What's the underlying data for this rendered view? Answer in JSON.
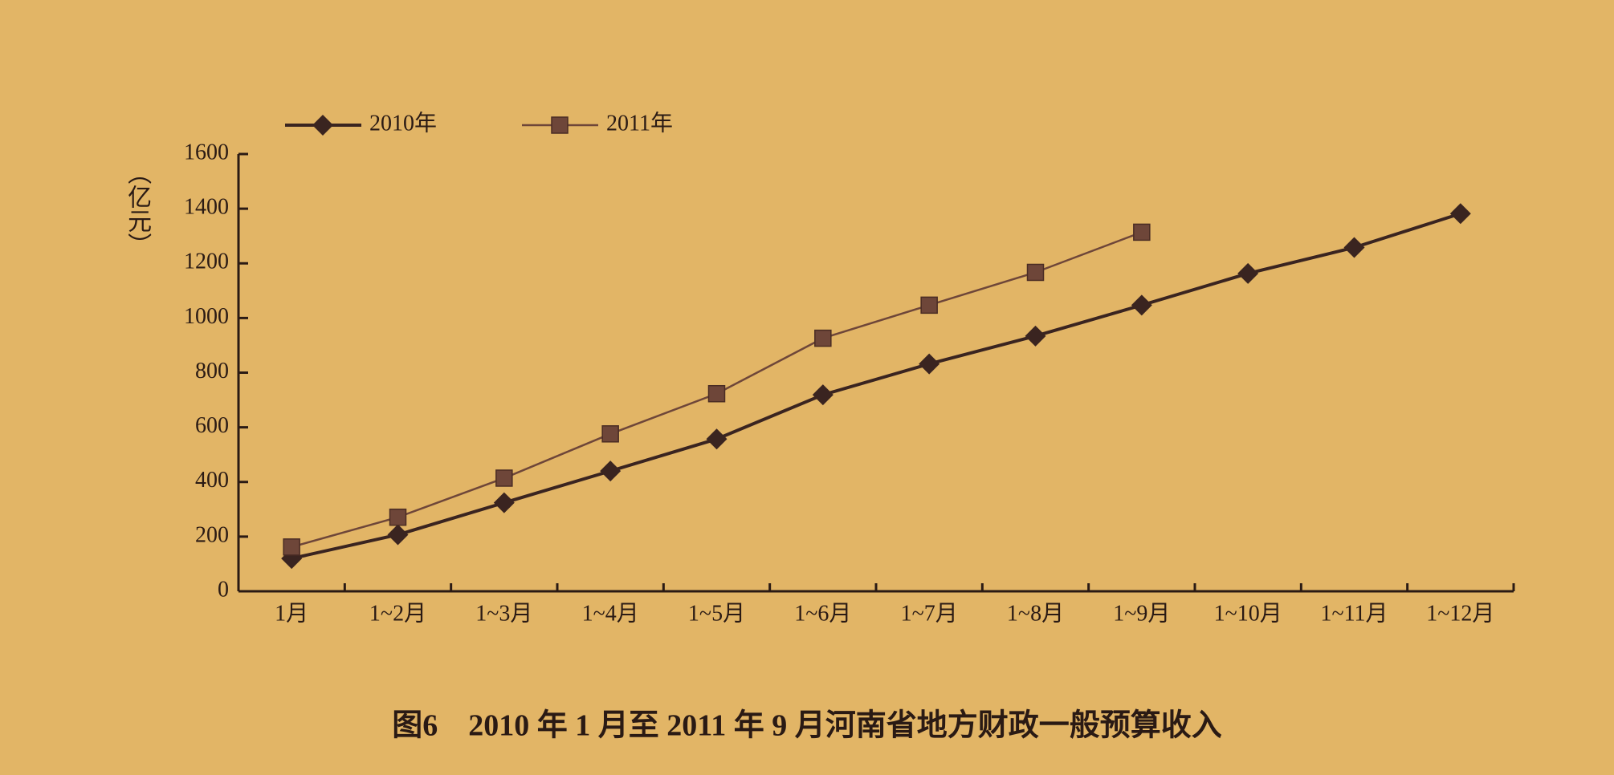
{
  "chart_data": {
    "type": "line",
    "title": "图6　2010 年 1 月至 2011 年 9 月河南省地方财政一般预算收入",
    "y_label": "（亿元）",
    "categories": [
      "1月",
      "1~2月",
      "1~3月",
      "1~4月",
      "1~5月",
      "1~6月",
      "1~7月",
      "1~8月",
      "1~9月",
      "1~10月",
      "1~11月",
      "1~12月"
    ],
    "series": [
      {
        "name": "2010年",
        "color": "#3a2420",
        "marker": "diamond",
        "values": [
          120,
          207,
          324,
          440,
          557,
          719,
          832,
          934,
          1047,
          1163,
          1258,
          1382
        ]
      },
      {
        "name": "2011年",
        "color": "#6e4639",
        "marker": "square",
        "values": [
          162,
          271,
          414,
          576,
          723,
          926,
          1047,
          1167,
          1314,
          null,
          null,
          null
        ]
      }
    ],
    "ylim": [
      0,
      1600
    ],
    "yticks": [
      0,
      200,
      400,
      600,
      800,
      1000,
      1200,
      1400,
      1600
    ],
    "legend": "top-left"
  }
}
